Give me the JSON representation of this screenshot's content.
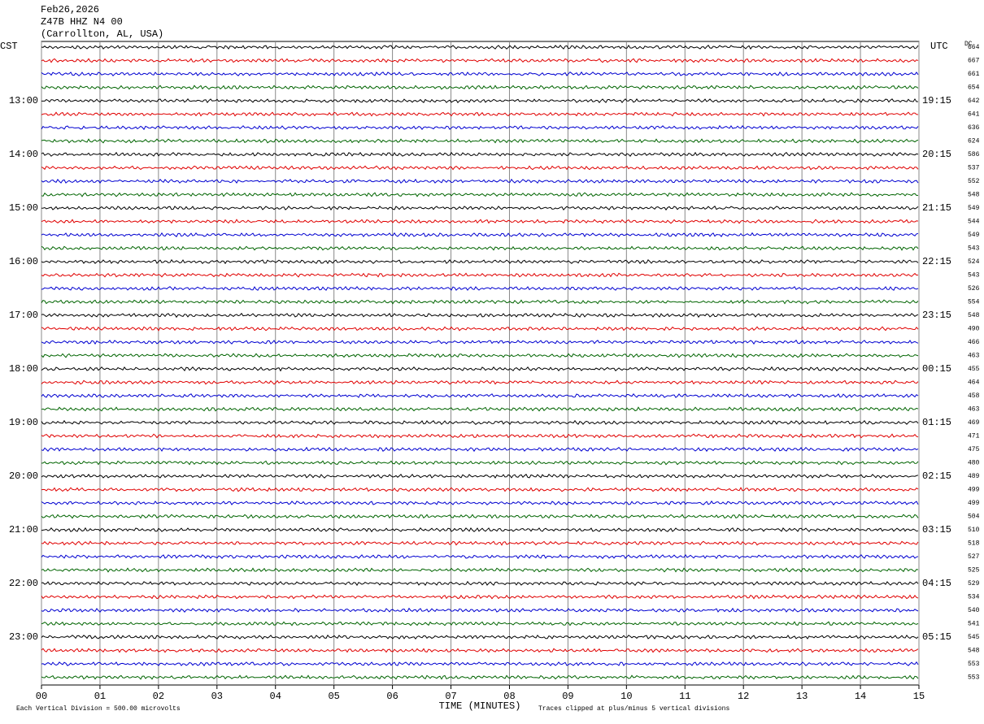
{
  "header": {
    "date": "Feb26,2026",
    "station": "Z47B HHZ N4 00",
    "location": "(Carrollton, AL, USA)"
  },
  "left_title": "CST",
  "right_title": "UTC",
  "dc_title": "DC",
  "colors": [
    "#000000",
    "#e00000",
    "#0000d0",
    "#006400"
  ],
  "left_labels": [
    "13:00",
    "14:00",
    "15:00",
    "16:00",
    "17:00",
    "18:00",
    "19:00",
    "20:00",
    "21:00",
    "22:00",
    "23:00"
  ],
  "right_labels": [
    "19:15",
    "20:15",
    "21:15",
    "22:15",
    "23:15",
    "00:15",
    "01:15",
    "02:15",
    "03:15",
    "04:15",
    "05:15"
  ],
  "dc": [
    664,
    667,
    661,
    654,
    642,
    641,
    636,
    624,
    586,
    537,
    552,
    548,
    549,
    544,
    549,
    543,
    524,
    543,
    526,
    554,
    548,
    490,
    466,
    463,
    455,
    464,
    458,
    463,
    469,
    471,
    475,
    480,
    489,
    499,
    499,
    504,
    510,
    518,
    527,
    525,
    529,
    534,
    540,
    541,
    545,
    548,
    553,
    553
  ],
  "xlim": [
    0,
    15
  ],
  "xticks": [
    {
      "value": 0,
      "label": "00"
    },
    {
      "value": 1,
      "label": "01"
    },
    {
      "value": 2,
      "label": "02"
    },
    {
      "value": 3,
      "label": "03"
    },
    {
      "value": 4,
      "label": "04"
    },
    {
      "value": 5,
      "label": "05"
    },
    {
      "value": 6,
      "label": "06"
    },
    {
      "value": 7,
      "label": "07"
    },
    {
      "value": 8,
      "label": "08"
    },
    {
      "value": 9,
      "label": "09"
    },
    10,
    11,
    12,
    13,
    14,
    15
  ],
  "xlabel": "TIME (MINUTES)",
  "scale_note": "Each Vertical Division =  500.00 microvolts",
  "clip_note": "Traces clipped at plus/minus 5 vertical divisions"
}
